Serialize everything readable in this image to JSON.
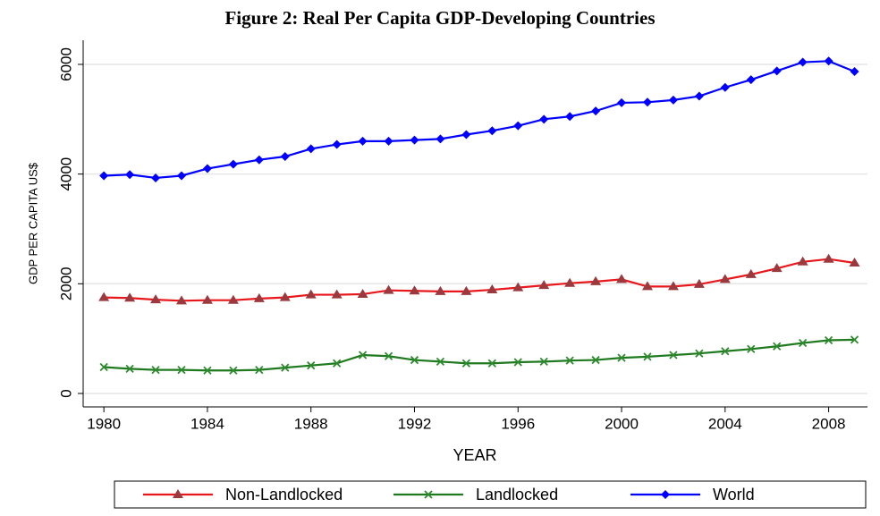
{
  "chart_data": {
    "type": "line",
    "title": "Figure 2: Real Per Capita GDP-Developing Countries",
    "x_label": "YEAR",
    "y_label": "GDP PER CAPITA US$",
    "x": [
      1980,
      1981,
      1982,
      1983,
      1984,
      1985,
      1986,
      1987,
      1988,
      1989,
      1990,
      1991,
      1992,
      1993,
      1994,
      1995,
      1996,
      1997,
      1998,
      1999,
      2000,
      2001,
      2002,
      2003,
      2004,
      2005,
      2006,
      2007,
      2008,
      2009
    ],
    "series": [
      {
        "name": "Non-Landlocked",
        "color": "#e8171c",
        "marker": "triangle",
        "marker_color": "#9b3a3e",
        "values": [
          1750,
          1740,
          1710,
          1690,
          1700,
          1700,
          1730,
          1750,
          1800,
          1800,
          1810,
          1880,
          1870,
          1860,
          1860,
          1890,
          1930,
          1970,
          2010,
          2040,
          2080,
          1950,
          1950,
          1990,
          2080,
          2170,
          2280,
          2400,
          2450,
          2380
        ]
      },
      {
        "name": "Landlocked",
        "color": "#1f7a1f",
        "marker": "x",
        "marker_color": "#2f8a2f",
        "values": [
          480,
          450,
          430,
          430,
          420,
          420,
          430,
          470,
          510,
          550,
          700,
          680,
          610,
          580,
          550,
          550,
          570,
          580,
          600,
          610,
          650,
          670,
          700,
          730,
          770,
          810,
          860,
          920,
          970,
          980
        ]
      },
      {
        "name": "World",
        "color": "#0000ff",
        "marker": "diamond",
        "marker_color": "#0000ff",
        "values": [
          3970,
          3990,
          3930,
          3970,
          4100,
          4180,
          4260,
          4320,
          4460,
          4540,
          4600,
          4600,
          4620,
          4640,
          4720,
          4790,
          4880,
          5000,
          5050,
          5150,
          5300,
          5310,
          5350,
          5420,
          5580,
          5720,
          5880,
          6040,
          6060,
          5870
        ]
      }
    ],
    "xlim": [
      1979.2,
      2009.5
    ],
    "xticks": [
      1980,
      1984,
      1988,
      1992,
      1996,
      2000,
      2004,
      2008
    ],
    "ylim": [
      -245,
      6440
    ],
    "yticks": [
      0,
      2000,
      4000,
      6000
    ],
    "grid": true,
    "legend": "bottom"
  }
}
